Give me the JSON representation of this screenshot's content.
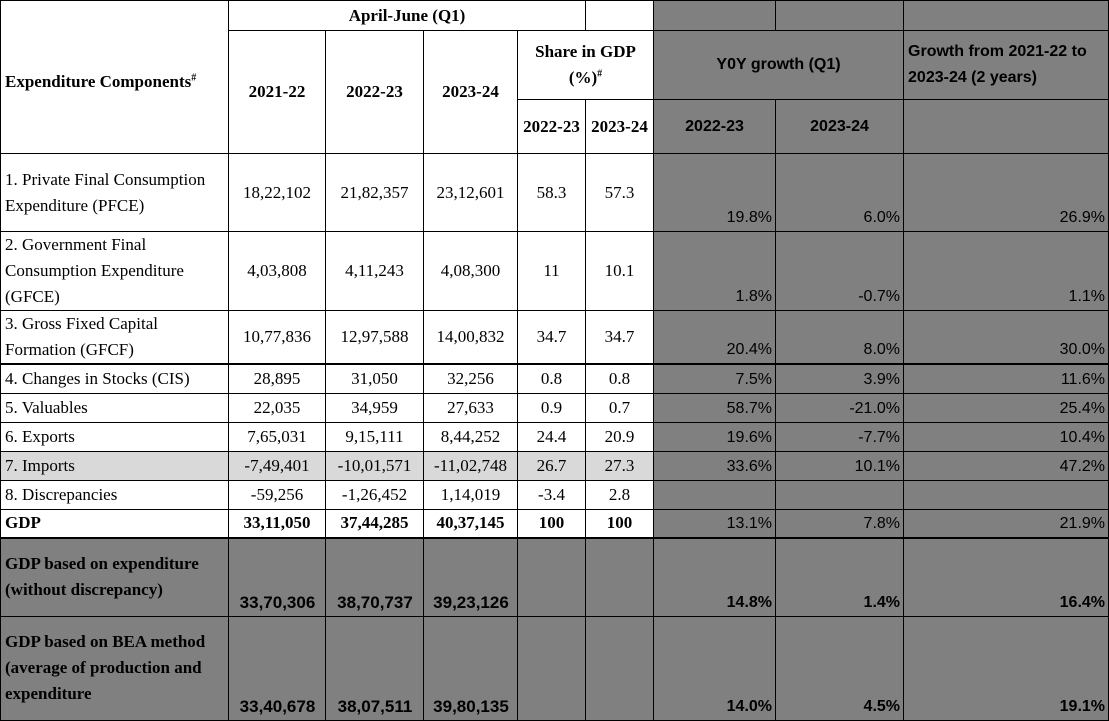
{
  "header": {
    "period_title": "April-June (Q1)",
    "components_label": "Expenditure Components",
    "components_sup": "#",
    "years": [
      "2021-22",
      "2022-23",
      "2023-24"
    ],
    "share_title": "Share in GDP (%)",
    "share_sup": "#",
    "share_years": [
      "2022-23",
      "2023-24"
    ],
    "yoy_title": "Y0Y growth (Q1)",
    "yoy_years": [
      "2022-23",
      "2023-24"
    ],
    "growth2_title": "Growth from 2021-22 to 2023-24 (2 years)"
  },
  "rows": [
    {
      "label": "1. Private Final Consumption Expenditure (PFCE)",
      "v2122": "18,22,102",
      "v2223": "21,82,357",
      "v2324": "23,12,601",
      "s2223": "58.3",
      "s2324": "57.3",
      "y2223": "19.8%",
      "y2324": "6.0%",
      "g2": "26.9%"
    },
    {
      "label": "2. Government Final Consumption Expenditure (GFCE)",
      "v2122": "4,03,808",
      "v2223": "4,11,243",
      "v2324": "4,08,300",
      "s2223": "11",
      "s2324": "10.1",
      "y2223": "1.8%",
      "y2324": "-0.7%",
      "g2": "1.1%"
    },
    {
      "label": "3. Gross Fixed Capital Formation (GFCF)",
      "v2122": "10,77,836",
      "v2223": "12,97,588",
      "v2324": "14,00,832",
      "s2223": "34.7",
      "s2324": "34.7",
      "y2223": "20.4%",
      "y2324": "8.0%",
      "g2": "30.0%"
    },
    {
      "label": "4. Changes in Stocks (CIS)",
      "v2122": "28,895",
      "v2223": "31,050",
      "v2324": "32,256",
      "s2223": "0.8",
      "s2324": "0.8",
      "y2223": "7.5%",
      "y2324": "3.9%",
      "g2": "11.6%"
    },
    {
      "label": "5. Valuables",
      "v2122": "22,035",
      "v2223": "34,959",
      "v2324": "27,633",
      "s2223": "0.9",
      "s2324": "0.7",
      "y2223": "58.7%",
      "y2324": "-21.0%",
      "g2": "25.4%"
    },
    {
      "label": "6. Exports",
      "v2122": "7,65,031",
      "v2223": "9,15,111",
      "v2324": "8,44,252",
      "s2223": "24.4",
      "s2324": "20.9",
      "y2223": "19.6%",
      "y2324": "-7.7%",
      "g2": "10.4%"
    },
    {
      "label": "7. Imports",
      "v2122": "-7,49,401",
      "v2223": "-10,01,571",
      "v2324": "-11,02,748",
      "s2223": "26.7",
      "s2324": "27.3",
      "y2223": "33.6%",
      "y2324": "10.1%",
      "g2": "47.2%"
    },
    {
      "label": "8. Discrepancies",
      "v2122": "-59,256",
      "v2223": "-1,26,452",
      "v2324": "1,14,019",
      "s2223": "-3.4",
      "s2324": "2.8",
      "y2223": "",
      "y2324": "",
      "g2": ""
    },
    {
      "label": "GDP",
      "v2122": "33,11,050",
      "v2223": "37,44,285",
      "v2324": "40,37,145",
      "s2223": "100",
      "s2324": "100",
      "y2223": "13.1%",
      "y2324": "7.8%",
      "g2": "21.9%"
    },
    {
      "label": "GDP based on expenditure (without discrepancy)",
      "v2122": "33,70,306",
      "v2223": "38,70,737",
      "v2324": "39,23,126",
      "s2223": "",
      "s2324": "",
      "y2223": "14.8%",
      "y2324": "1.4%",
      "g2": "16.4%"
    },
    {
      "label": "GDP based on BEA method (average of production and expenditure",
      "v2122": "33,40,678",
      "v2223": "38,07,511",
      "v2324": "39,80,135",
      "s2223": "",
      "s2324": "",
      "y2223": "14.0%",
      "y2324": "4.5%",
      "g2": "19.1%"
    }
  ]
}
